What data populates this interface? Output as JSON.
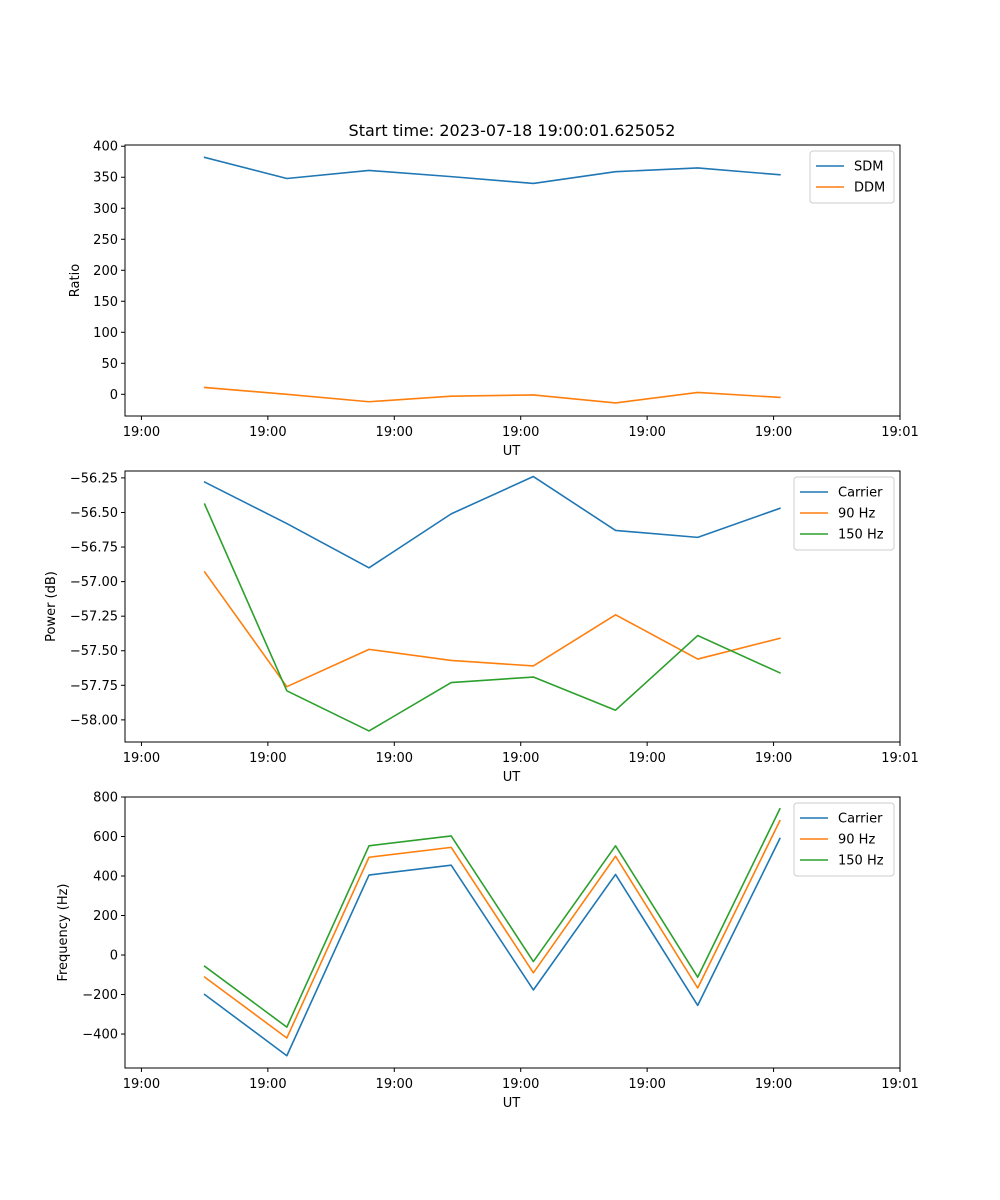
{
  "figure_title": "Start time: 2023-07-18 19:00:01.625052",
  "colors": {
    "blue": "#1f77b4",
    "orange": "#ff7f0e",
    "green": "#2ca02c"
  },
  "chart_data": [
    {
      "type": "line",
      "title": "Start time: 2023-07-18 19:00:01.625052",
      "xlabel": "UT",
      "ylabel": "Ratio",
      "x_ticks": [
        "19:00",
        "19:00",
        "19:00",
        "19:00",
        "19:00",
        "19:00",
        "19:01"
      ],
      "x_tick_positions": [
        0,
        1,
        2,
        3,
        4,
        5,
        6
      ],
      "x": [
        0.5,
        1.15,
        1.8,
        2.45,
        3.1,
        3.75,
        4.4,
        5.05
      ],
      "xlim": [
        -0.13,
        6.0
      ],
      "ylim": [
        -35,
        402
      ],
      "y_ticks": [
        0,
        50,
        100,
        150,
        200,
        250,
        300,
        350,
        400
      ],
      "legend": "top-right",
      "series": [
        {
          "name": "SDM",
          "color": "#1f77b4",
          "values": [
            382,
            348,
            361,
            351,
            340,
            359,
            365,
            354
          ]
        },
        {
          "name": "DDM",
          "color": "#ff7f0e",
          "values": [
            11,
            0,
            -12,
            -3,
            -1,
            -14,
            3,
            -5
          ]
        }
      ]
    },
    {
      "type": "line",
      "title": "",
      "xlabel": "UT",
      "ylabel": "Power (dB)",
      "x_ticks": [
        "19:00",
        "19:00",
        "19:00",
        "19:00",
        "19:00",
        "19:00",
        "19:01"
      ],
      "x_tick_positions": [
        0,
        1,
        2,
        3,
        4,
        5,
        6
      ],
      "x": [
        0.5,
        1.15,
        1.8,
        2.45,
        3.1,
        3.75,
        4.4,
        5.05
      ],
      "xlim": [
        -0.13,
        6.0
      ],
      "ylim": [
        -58.16,
        -56.2
      ],
      "y_ticks": [
        -58.0,
        -57.75,
        -57.5,
        -57.25,
        -57.0,
        -56.75,
        -56.5,
        -56.25
      ],
      "y_tick_labels": [
        "−58.00",
        "−57.75",
        "−57.50",
        "−57.25",
        "−57.00",
        "−56.75",
        "−56.50",
        "−56.25"
      ],
      "legend": "top-right",
      "series": [
        {
          "name": "Carrier",
          "color": "#1f77b4",
          "values": [
            -56.28,
            -56.58,
            -56.9,
            -56.51,
            -56.24,
            -56.63,
            -56.68,
            -56.47
          ]
        },
        {
          "name": "90 Hz",
          "color": "#ff7f0e",
          "values": [
            -56.93,
            -57.76,
            -57.49,
            -57.57,
            -57.61,
            -57.24,
            -57.56,
            -57.41
          ]
        },
        {
          "name": "150 Hz",
          "color": "#2ca02c",
          "values": [
            -56.44,
            -57.79,
            -58.08,
            -57.73,
            -57.69,
            -57.93,
            -57.39,
            -57.66
          ]
        }
      ]
    },
    {
      "type": "line",
      "title": "",
      "xlabel": "UT",
      "ylabel": "Frequency (Hz)",
      "x_ticks": [
        "19:00",
        "19:00",
        "19:00",
        "19:00",
        "19:00",
        "19:00",
        "19:01"
      ],
      "x_tick_positions": [
        0,
        1,
        2,
        3,
        4,
        5,
        6
      ],
      "x": [
        0.5,
        1.15,
        1.8,
        2.45,
        3.1,
        3.75,
        4.4,
        5.05
      ],
      "xlim": [
        -0.13,
        6.0
      ],
      "ylim": [
        -572,
        800
      ],
      "y_ticks": [
        -400,
        -200,
        0,
        200,
        400,
        600,
        800
      ],
      "y_tick_labels": [
        "−400",
        "−200",
        "0",
        "200",
        "400",
        "600",
        "800"
      ],
      "legend": "top-right",
      "series": [
        {
          "name": "Carrier",
          "color": "#1f77b4",
          "values": [
            -200,
            -510,
            405,
            455,
            -177,
            408,
            -255,
            590
          ]
        },
        {
          "name": "90 Hz",
          "color": "#ff7f0e",
          "values": [
            -112,
            -420,
            495,
            545,
            -90,
            500,
            -167,
            680
          ]
        },
        {
          "name": "150 Hz",
          "color": "#2ca02c",
          "values": [
            -57,
            -365,
            553,
            603,
            -33,
            553,
            -112,
            740
          ]
        }
      ]
    }
  ]
}
